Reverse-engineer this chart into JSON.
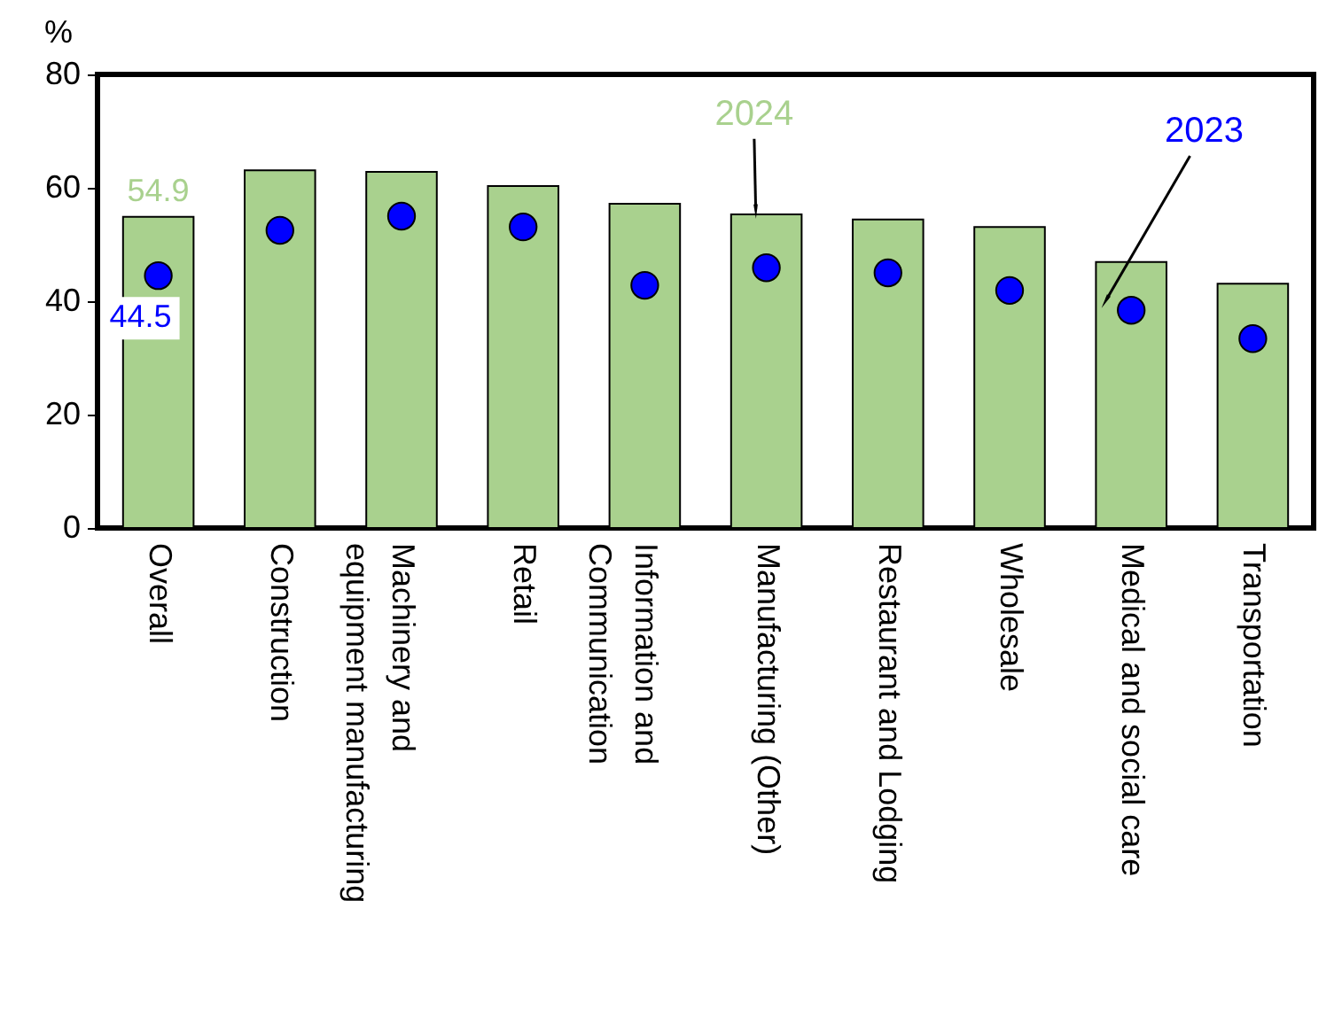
{
  "chart_data": {
    "type": "bar",
    "ylabel": "%",
    "categories": [
      "Overall",
      "Construction",
      "Machinery and equipment manufacturing",
      "Retail",
      "Information and Communication",
      "Manufacturing (Other)",
      "Restaurant and Lodging",
      "Wholesale",
      "Medical and social care",
      "Transportation"
    ],
    "series": [
      {
        "name": "2024",
        "type": "bar",
        "color": "#a9d18e",
        "values": [
          54.9,
          63.1,
          62.8,
          60.3,
          57.2,
          55.3,
          54.4,
          53.1,
          46.9,
          43.1
        ],
        "value_labels": [
          "54.9",
          null,
          null,
          null,
          null,
          null,
          null,
          null,
          null,
          null
        ]
      },
      {
        "name": "2023",
        "type": "scatter",
        "color": "#0000ff",
        "values": [
          44.5,
          52.5,
          55.0,
          53.1,
          42.8,
          45.9,
          45.0,
          41.9,
          38.4,
          33.4
        ],
        "value_labels": [
          "44.5",
          null,
          null,
          null,
          null,
          null,
          null,
          null,
          null,
          null
        ]
      }
    ],
    "ylim": [
      0,
      80
    ],
    "yticks": [
      0,
      20,
      40,
      60,
      80
    ],
    "grid": false,
    "marker": "circle"
  }
}
